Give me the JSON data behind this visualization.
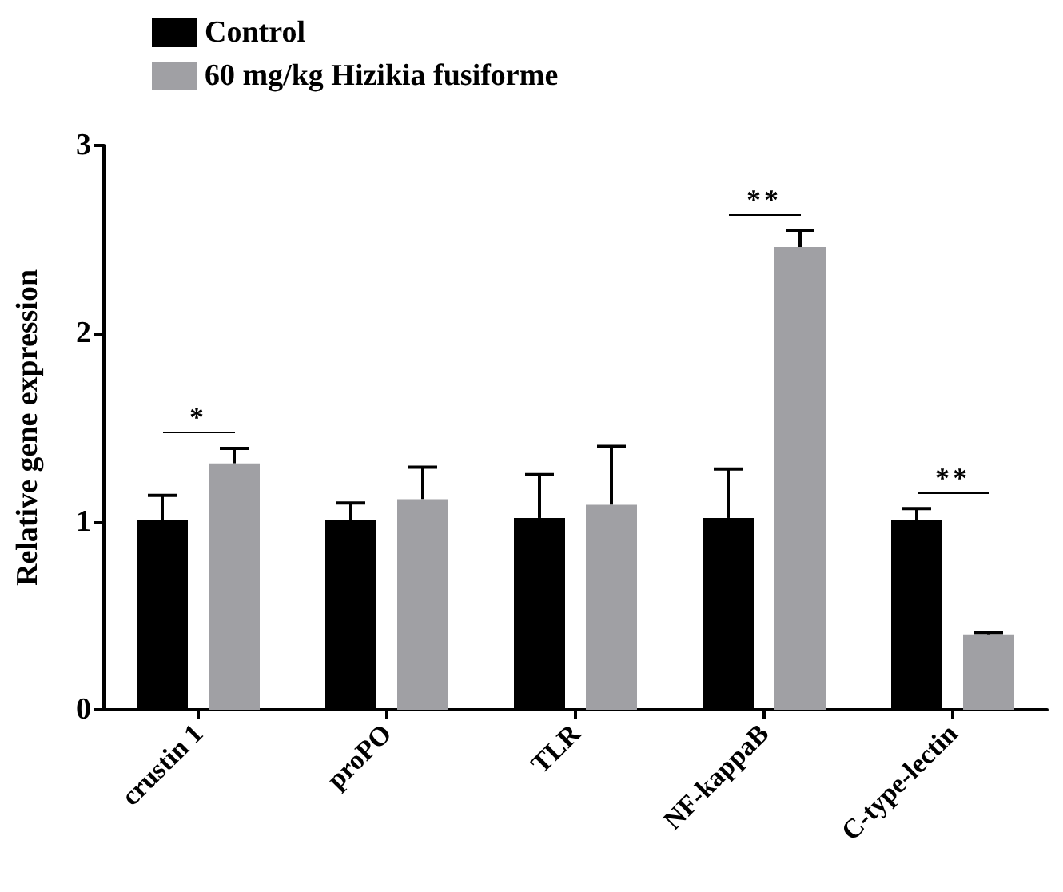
{
  "chart_data": {
    "type": "bar",
    "ylabel": "Relative gene expression",
    "categories": [
      "crustin 1",
      "proPO",
      "TLR",
      "NF-kappaB",
      "C-type-lectin"
    ],
    "series": [
      {
        "name": "Control",
        "color": "#000000",
        "values": [
          1.01,
          1.01,
          1.02,
          1.02,
          1.01
        ],
        "errors": [
          [
            1.01,
            1.14
          ],
          [
            1.01,
            1.1
          ],
          [
            1.02,
            1.25
          ],
          [
            1.02,
            1.28
          ],
          [
            1.01,
            1.07
          ]
        ]
      },
      {
        "name": "60 mg/kg Hizikia fusiforme",
        "color": "#a0a0a4",
        "values": [
          1.31,
          1.12,
          1.09,
          2.46,
          0.4
        ],
        "errors": [
          [
            1.31,
            1.39
          ],
          [
            1.12,
            1.29
          ],
          [
            1.09,
            1.4
          ],
          [
            2.46,
            2.55
          ],
          [
            0.4,
            0.41
          ]
        ]
      }
    ],
    "ylim": [
      0,
      3
    ],
    "yticks": [
      0,
      1,
      2,
      3
    ],
    "grid": false,
    "legend": "top left",
    "annotations": [
      "*",
      "**",
      "**"
    ]
  }
}
